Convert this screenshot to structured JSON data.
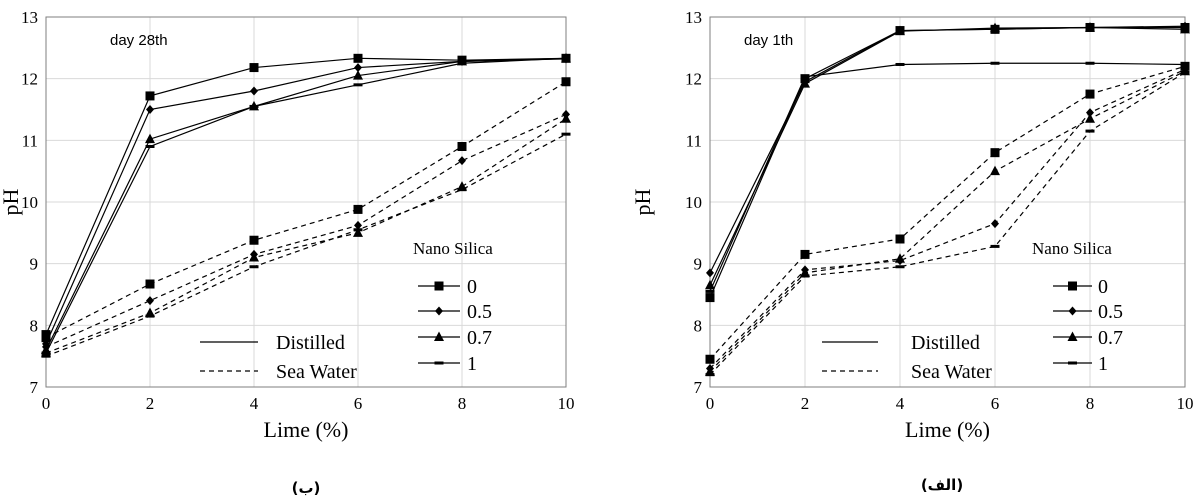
{
  "chart_data": [
    {
      "type": "line",
      "annotation": "day 28th",
      "caption": "(ب)",
      "xlabel": "Lime (%)",
      "ylabel": "pH",
      "x": [
        0,
        2,
        4,
        6,
        8,
        10
      ],
      "xlim": [
        0,
        10
      ],
      "ylim": [
        7,
        13
      ],
      "xticks": [
        0,
        2,
        4,
        6,
        8,
        10
      ],
      "yticks": [
        7,
        8,
        9,
        10,
        11,
        12,
        13
      ],
      "grid": true,
      "legend": {
        "title": "Nano Silica",
        "entries": [
          "0",
          "0.5",
          "0.7",
          "1"
        ],
        "style_entries": [
          "Distilled",
          "Sea Water"
        ],
        "placement": "lower-right"
      },
      "series": [
        {
          "nano_silica": "0",
          "medium": "Distilled",
          "values": [
            7.85,
            11.72,
            12.18,
            12.33,
            12.3,
            12.33
          ]
        },
        {
          "nano_silica": "0.5",
          "medium": "Distilled",
          "values": [
            7.7,
            11.5,
            11.8,
            12.18,
            12.28,
            12.32
          ]
        },
        {
          "nano_silica": "0.7",
          "medium": "Distilled",
          "values": [
            7.6,
            11.02,
            11.55,
            12.05,
            12.28,
            12.33
          ]
        },
        {
          "nano_silica": "1",
          "medium": "Distilled",
          "values": [
            7.55,
            10.9,
            11.55,
            11.9,
            12.25,
            12.33
          ]
        },
        {
          "nano_silica": "0",
          "medium": "Sea Water",
          "values": [
            7.8,
            8.67,
            9.38,
            9.88,
            10.9,
            11.95
          ]
        },
        {
          "nano_silica": "0.5",
          "medium": "Sea Water",
          "values": [
            7.65,
            8.4,
            9.15,
            9.62,
            10.67,
            11.42
          ]
        },
        {
          "nano_silica": "0.7",
          "medium": "Sea Water",
          "values": [
            7.55,
            8.2,
            9.1,
            9.5,
            10.25,
            11.35
          ]
        },
        {
          "nano_silica": "1",
          "medium": "Sea Water",
          "values": [
            7.5,
            8.15,
            8.95,
            9.55,
            10.2,
            11.1
          ]
        }
      ]
    },
    {
      "type": "line",
      "annotation": "day 1th",
      "caption": "(الف)",
      "xlabel": "Lime (%)",
      "ylabel": "pH",
      "x": [
        0,
        2,
        4,
        6,
        8,
        10
      ],
      "xlim": [
        0,
        10
      ],
      "ylim": [
        7,
        13
      ],
      "xticks": [
        0,
        2,
        4,
        6,
        8,
        10
      ],
      "yticks": [
        7,
        8,
        9,
        10,
        11,
        12,
        13
      ],
      "grid": true,
      "legend": {
        "title": "Nano Silica",
        "entries": [
          "0",
          "0.5",
          "0.7",
          "1"
        ],
        "style_entries": [
          "Distilled",
          "Sea Water"
        ],
        "placement": "lower-right"
      },
      "series": [
        {
          "nano_silica": "0",
          "medium": "Distilled",
          "values": [
            8.45,
            12.0,
            12.78,
            12.8,
            12.83,
            12.83
          ]
        },
        {
          "nano_silica": "0.5",
          "medium": "Distilled",
          "values": [
            8.85,
            11.95,
            12.78,
            12.8,
            12.83,
            12.85
          ]
        },
        {
          "nano_silica": "0.7",
          "medium": "Distilled",
          "values": [
            8.65,
            11.92,
            12.77,
            12.82,
            12.83,
            12.8
          ]
        },
        {
          "nano_silica": "1",
          "medium": "Distilled",
          "values": [
            8.55,
            12.03,
            12.23,
            12.25,
            12.25,
            12.23
          ]
        },
        {
          "nano_silica": "0",
          "medium": "Sea Water",
          "values": [
            7.45,
            9.15,
            9.4,
            10.8,
            11.75,
            12.2
          ]
        },
        {
          "nano_silica": "0.5",
          "medium": "Sea Water",
          "values": [
            7.3,
            8.9,
            9.05,
            9.65,
            11.45,
            12.15
          ]
        },
        {
          "nano_silica": "0.7",
          "medium": "Sea Water",
          "values": [
            7.25,
            8.85,
            9.08,
            10.5,
            11.35,
            12.12
          ]
        },
        {
          "nano_silica": "1",
          "medium": "Sea Water",
          "values": [
            7.2,
            8.8,
            8.95,
            9.28,
            11.15,
            12.1
          ]
        }
      ]
    }
  ]
}
